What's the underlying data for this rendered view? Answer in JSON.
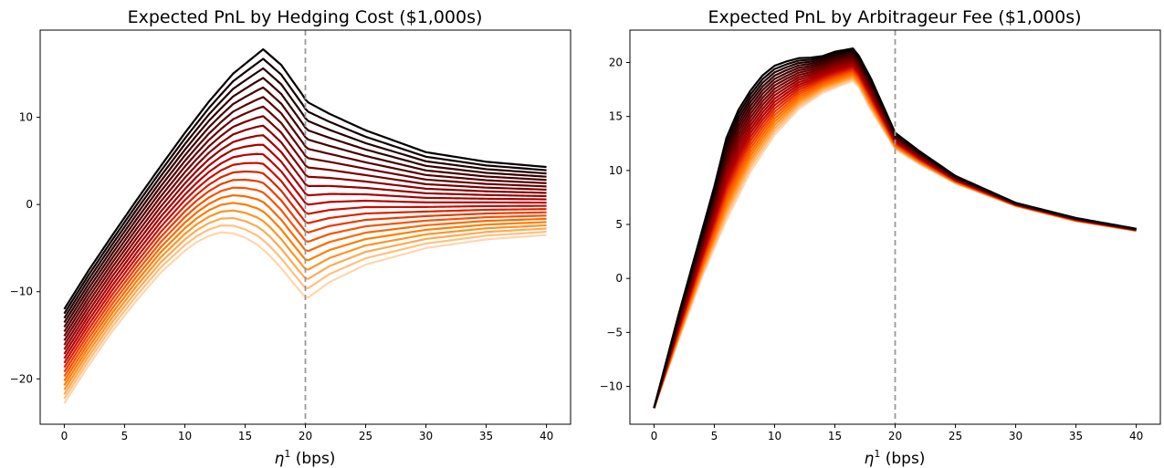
{
  "chart_data": [
    {
      "type": "line",
      "title": "Expected PnL by Hedging Cost ($1,000s)",
      "xlabel": {
        "symbol": "η",
        "superscript": "1",
        "unit": "(bps)"
      },
      "ylabel": "",
      "xlim": [
        -2,
        42
      ],
      "ylim": [
        -25.2,
        20.0
      ],
      "xticks": [
        0,
        5,
        10,
        15,
        20,
        25,
        30,
        35,
        40
      ],
      "yticks": [
        -20,
        -10,
        0,
        10
      ],
      "vline": {
        "x": 20,
        "color": "#999999",
        "style": "dashed"
      },
      "colormap": "gist_heat",
      "series_count": 22,
      "series_note": "22 curves, colour from black (top) to pale orange (bottom); each curve shifted downward relative to the previous",
      "series": [
        {
          "name": "top",
          "x": [
            0,
            2,
            4,
            6,
            8,
            10,
            12,
            14,
            16.5,
            18,
            19.9,
            20.1,
            22,
            25,
            30,
            35,
            40
          ],
          "y": [
            -12.0,
            -7.6,
            -3.5,
            0.5,
            4.4,
            8.2,
            11.8,
            15.0,
            17.8,
            16.0,
            12.3,
            11.8,
            10.4,
            8.5,
            6.0,
            4.9,
            4.3
          ]
        },
        {
          "name": "bottom",
          "x": [
            0,
            2,
            4,
            6,
            8,
            10,
            11,
            12,
            13,
            14,
            15,
            16,
            17,
            18,
            19,
            19.9,
            20.1,
            22,
            25,
            30,
            35,
            40
          ],
          "y": [
            -22.8,
            -18.5,
            -14.5,
            -11.0,
            -7.8,
            -5.3,
            -4.3,
            -3.6,
            -3.2,
            -3.3,
            -3.8,
            -4.6,
            -5.8,
            -7.3,
            -9.0,
            -10.5,
            -10.8,
            -8.9,
            -6.9,
            -5.0,
            -4.0,
            -3.5
          ]
        }
      ]
    },
    {
      "type": "line",
      "title": "Expected PnL by Arbitrageur Fee ($1,000s)",
      "xlabel": {
        "symbol": "η",
        "superscript": "1",
        "unit": "(bps)"
      },
      "ylabel": "",
      "xlim": [
        -2,
        42
      ],
      "ylim": [
        -13.5,
        23.0
      ],
      "xticks": [
        0,
        5,
        10,
        15,
        20,
        25,
        30,
        35,
        40
      ],
      "yticks": [
        -10,
        -5,
        0,
        5,
        10,
        15,
        20
      ],
      "vline": {
        "x": 20,
        "color": "#999999",
        "style": "dashed"
      },
      "colormap": "gist_heat",
      "series_count": 22,
      "series_note": "22 curves, colour from black (top) to pale orange (bottom); curves converge toward x = 0 and x = 40",
      "series": [
        {
          "name": "top",
          "x": [
            0,
            2,
            4,
            5,
            6,
            7,
            8,
            9,
            10,
            11,
            12,
            13,
            14,
            15,
            16,
            16.5,
            17,
            18,
            19,
            20,
            22,
            25,
            30,
            35,
            40
          ],
          "y": [
            -12.0,
            -3.5,
            4.5,
            8.5,
            13.0,
            15.6,
            17.4,
            18.8,
            19.7,
            20.1,
            20.4,
            20.45,
            20.6,
            21.0,
            21.2,
            21.3,
            20.6,
            18.5,
            16.0,
            13.5,
            11.8,
            9.5,
            7.0,
            5.6,
            4.6
          ]
        },
        {
          "name": "bottom",
          "x": [
            0,
            2,
            4,
            6,
            8,
            10,
            12,
            14,
            16,
            16.5,
            17,
            18,
            19,
            20,
            22,
            25,
            30,
            35,
            40
          ],
          "y": [
            -12.0,
            -5.8,
            0.2,
            5.4,
            9.9,
            13.3,
            15.7,
            17.2,
            18.1,
            18.3,
            17.7,
            15.6,
            13.8,
            12.0,
            10.6,
            8.8,
            6.7,
            5.3,
            4.4
          ]
        }
      ]
    }
  ]
}
